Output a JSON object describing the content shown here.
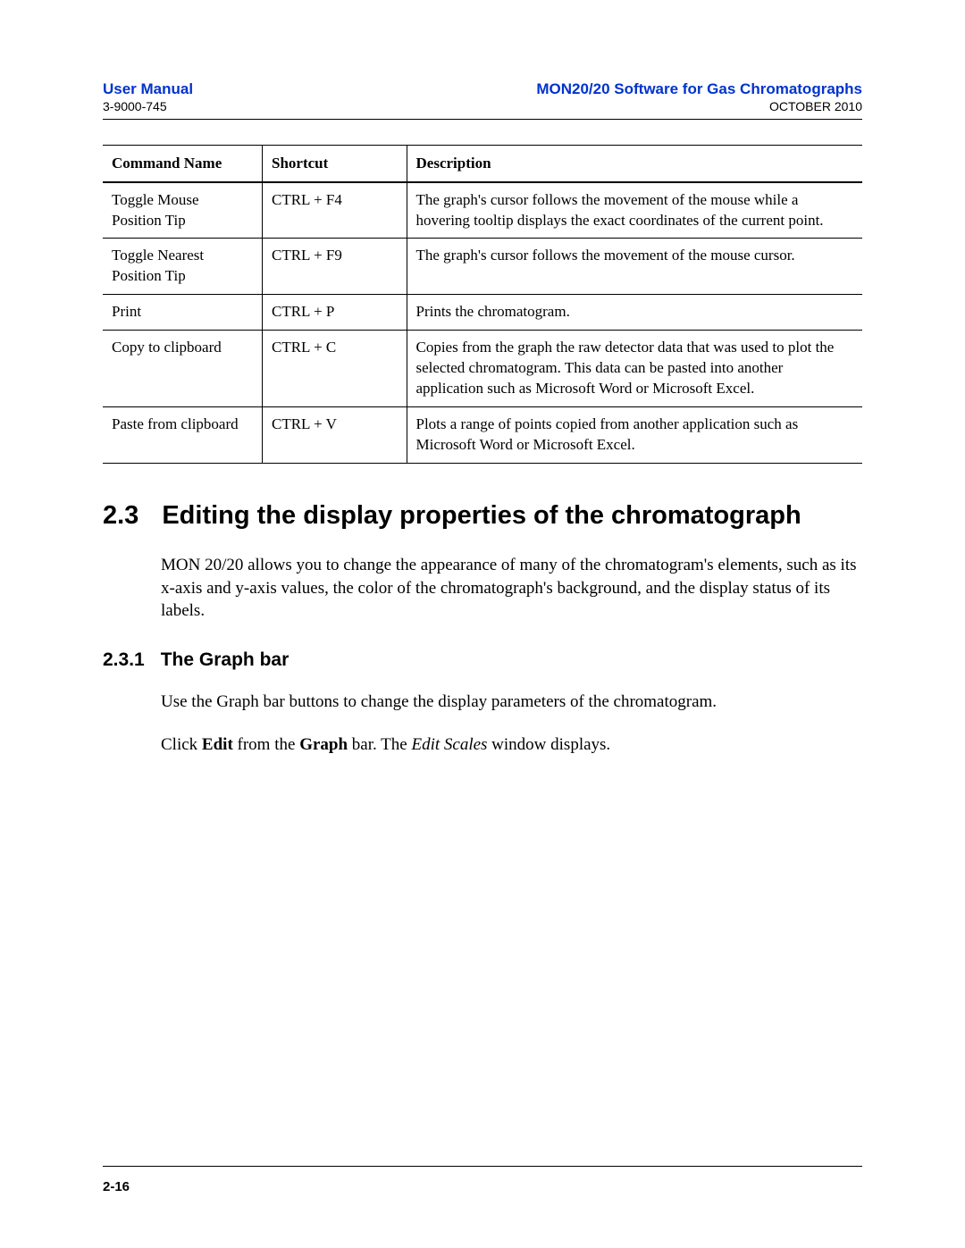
{
  "header": {
    "left_title": "User Manual",
    "left_sub": "3-9000-745",
    "right_title": "MON20/20 Software for Gas Chromatographs",
    "right_sub": "OCTOBER 2010",
    "title_color": "#0033cc"
  },
  "table": {
    "columns": [
      "Command Name",
      "Shortcut",
      "Description"
    ],
    "rows": [
      {
        "name": "Toggle Mouse Position Tip",
        "shortcut": "CTRL + F4",
        "desc": "The graph's cursor follows the movement of the mouse while a hovering tooltip displays the exact coordinates of the current point."
      },
      {
        "name": "Toggle Nearest Position Tip",
        "shortcut": "CTRL + F9",
        "desc": "The graph's cursor follows the movement of the mouse cursor."
      },
      {
        "name": "Print",
        "shortcut": "CTRL + P",
        "desc": "Prints the chromatogram."
      },
      {
        "name": "Copy to clipboard",
        "shortcut": "CTRL + C",
        "desc": "Copies from the graph the raw detector data that was used to plot the selected chromatogram.  This data can be pasted into another application such as Microsoft Word or Microsoft Excel."
      },
      {
        "name": "Paste from clipboard",
        "shortcut": "CTRL + V",
        "desc": "Plots a range of points copied from another application such as Microsoft Word or Microsoft Excel."
      }
    ]
  },
  "section": {
    "number": "2.3",
    "title": "Editing the display properties of the chromatograph",
    "para": "MON 20/20 allows you to change the appearance of many of the chromatogram's elements, such as its x-axis and y-axis values, the color of the chromatograph's background, and the display status of its labels."
  },
  "subsection": {
    "number": "2.3.1",
    "title": "The Graph bar",
    "para1": "Use the Graph bar buttons to change the display parameters of the chromatogram.",
    "para2_pre": "Click ",
    "para2_b1": "Edit",
    "para2_mid1": " from the ",
    "para2_b2": "Graph",
    "para2_mid2": " bar. The ",
    "para2_i": "Edit Scales",
    "para2_post": " window displays."
  },
  "footer": {
    "page": "2-16"
  }
}
